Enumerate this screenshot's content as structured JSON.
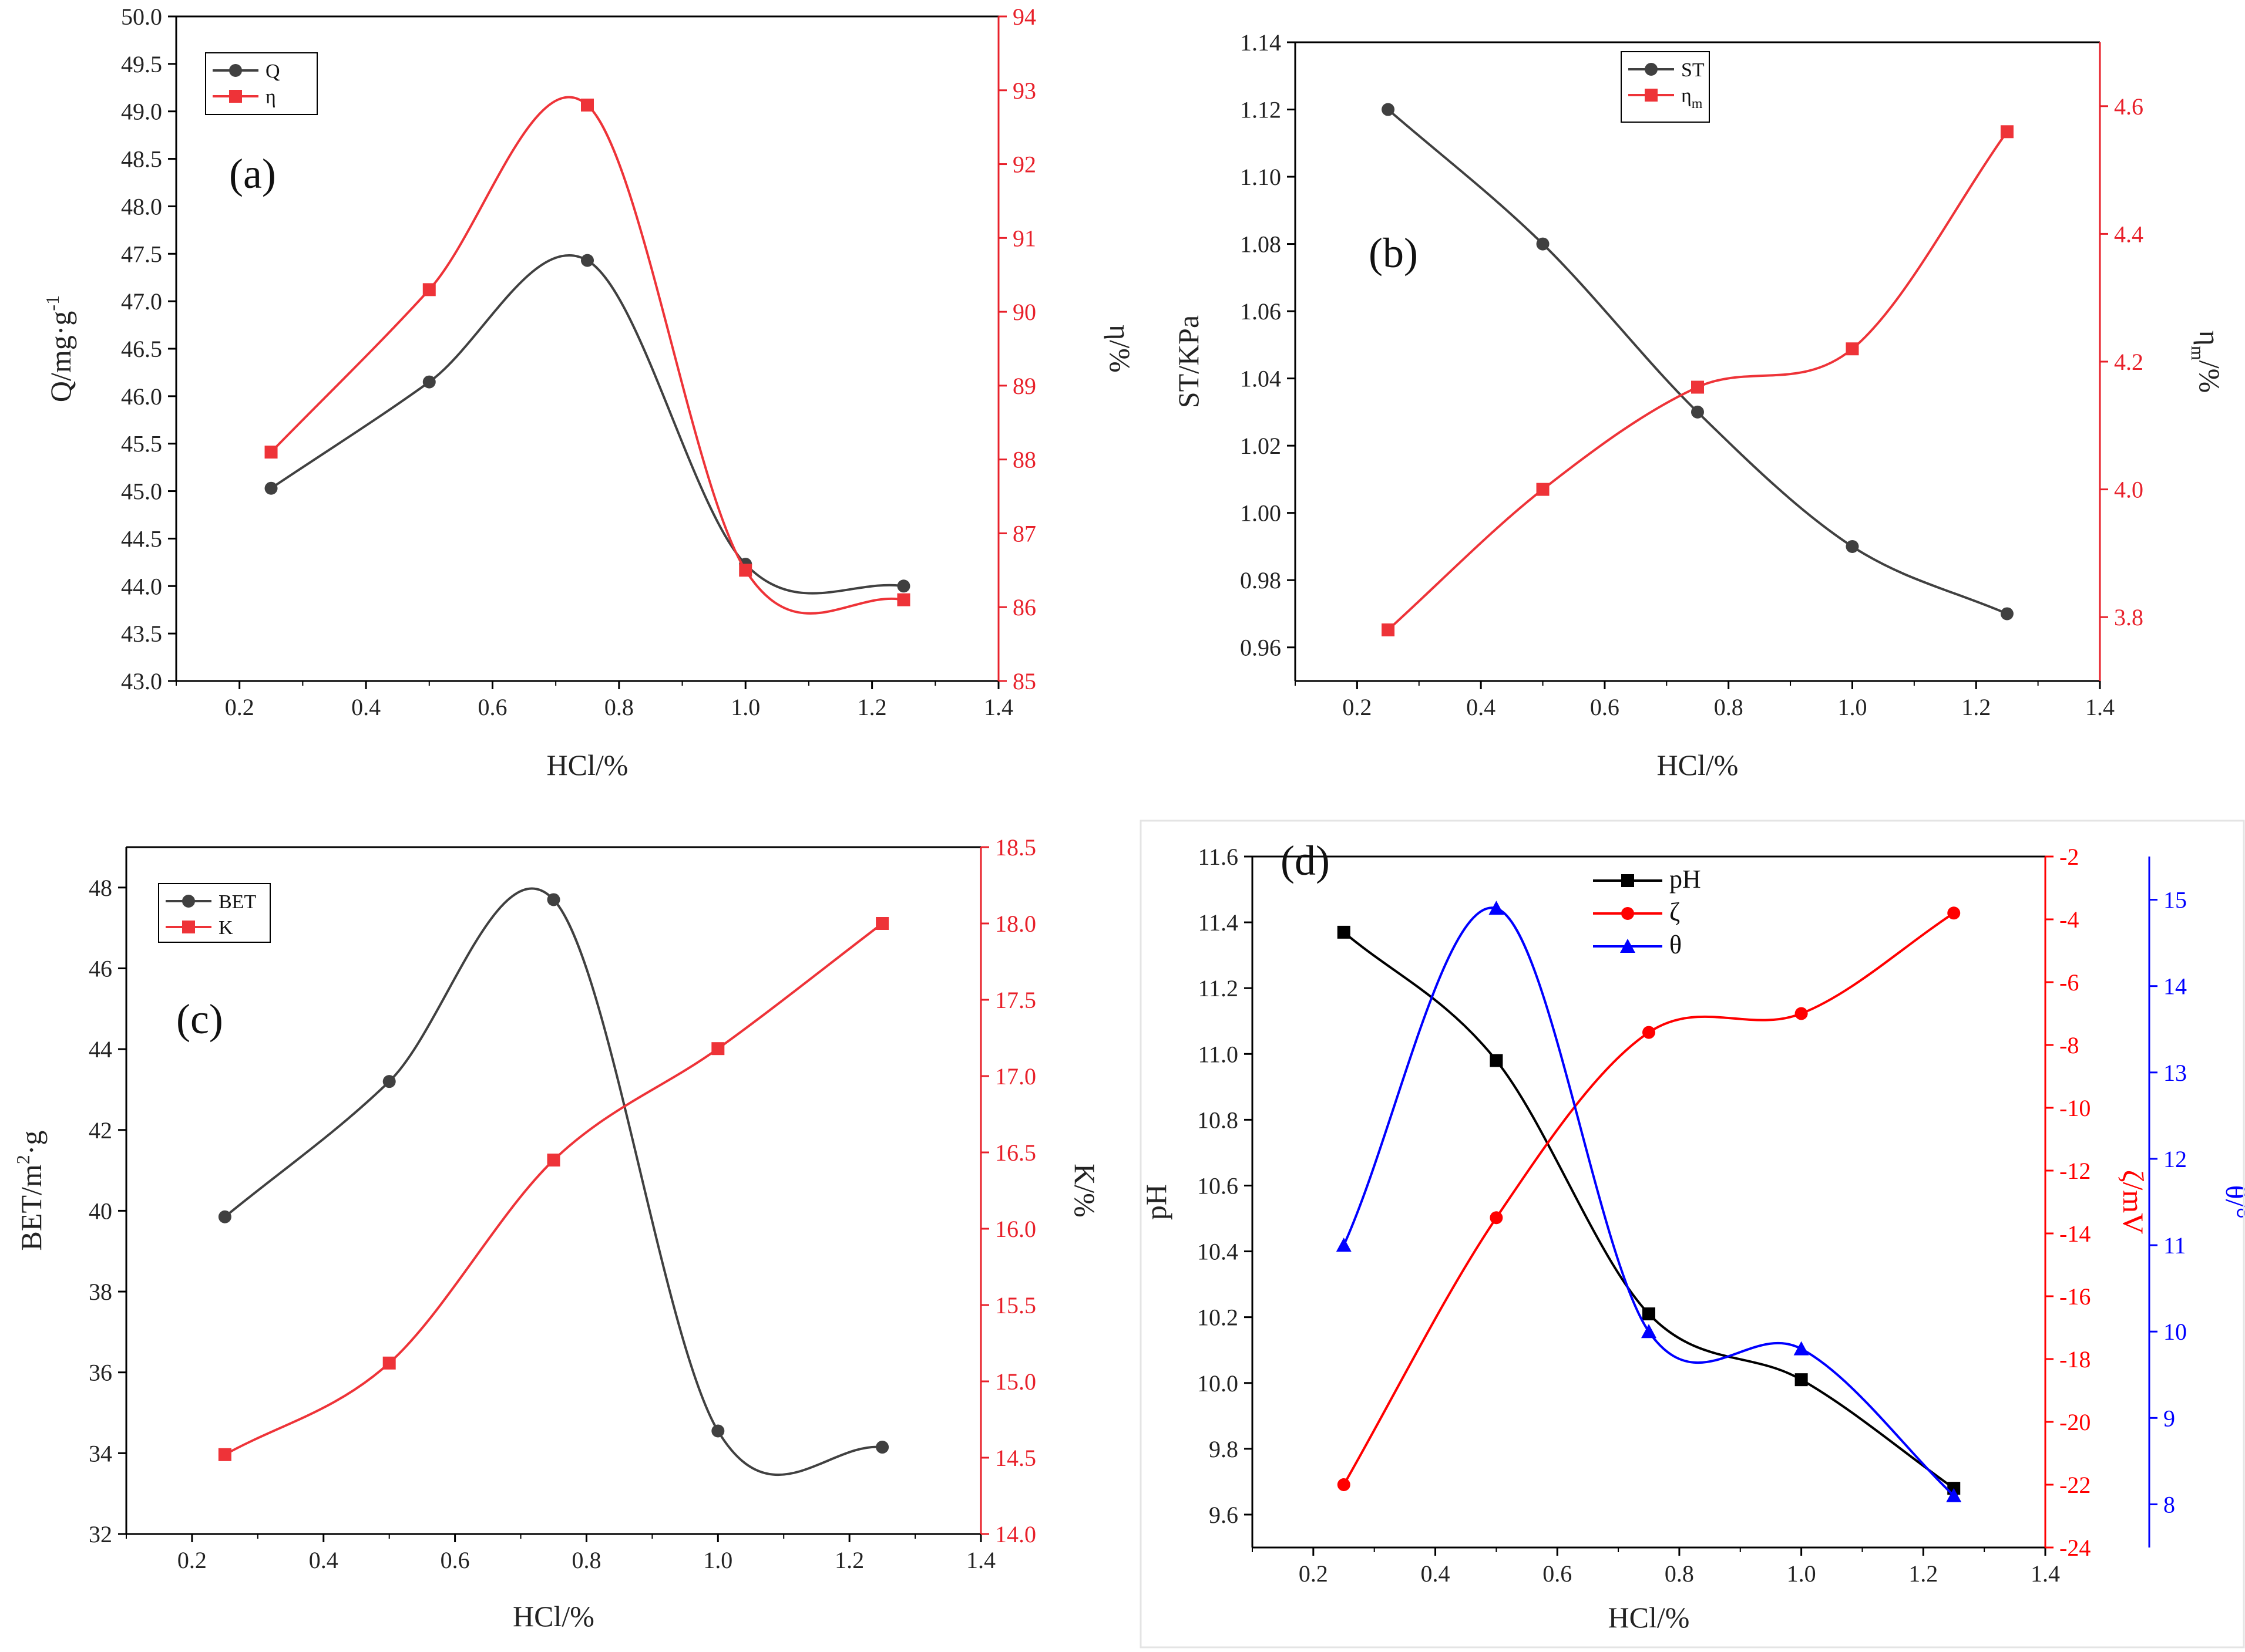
{
  "chart_data": [
    {
      "id": "a",
      "type": "line",
      "panel_label": "(a)",
      "xlabel": "HCl/%",
      "xlim": [
        0.1,
        1.4
      ],
      "xticks": [
        "0.2",
        "0.4",
        "0.6",
        "0.8",
        "1.0",
        "1.2",
        "1.4"
      ],
      "x": [
        0.25,
        0.5,
        0.75,
        1.0,
        1.25
      ],
      "left_axis": {
        "label": "Q/mg·g",
        "label_sup": "-1",
        "ylim": [
          43.0,
          50.0
        ],
        "ticks": [
          "43.0",
          "43.5",
          "44.0",
          "44.5",
          "45.0",
          "45.5",
          "46.0",
          "46.5",
          "47.0",
          "47.5",
          "48.0",
          "48.5",
          "49.0",
          "49.5",
          "50.0"
        ],
        "color": "#000000"
      },
      "right_axes": [
        {
          "label": "η/%",
          "ylim": [
            85,
            94
          ],
          "ticks": [
            "85",
            "86",
            "87",
            "88",
            "89",
            "90",
            "91",
            "92",
            "93",
            "94"
          ],
          "color": "#e8202a"
        }
      ],
      "series": [
        {
          "name": "Q",
          "axis": "left",
          "marker": "circle",
          "color": "#404040",
          "values": [
            45.03,
            46.15,
            47.43,
            44.23,
            44.0
          ]
        },
        {
          "name": "η",
          "axis": "right0",
          "marker": "square",
          "color": "#ee3338",
          "values": [
            88.1,
            90.3,
            92.8,
            86.5,
            86.1
          ]
        }
      ],
      "legend": [
        {
          "label": "Q",
          "series": 0
        },
        {
          "label": "η",
          "series": 1
        }
      ]
    },
    {
      "id": "b",
      "type": "line",
      "panel_label": "(b)",
      "xlabel": "HCl/%",
      "xlim": [
        0.1,
        1.4
      ],
      "xticks": [
        "0.2",
        "0.4",
        "0.6",
        "0.8",
        "1.0",
        "1.2",
        "1.4"
      ],
      "x": [
        0.25,
        0.5,
        0.75,
        1.0,
        1.25
      ],
      "left_axis": {
        "label": "ST/KPa",
        "ylim": [
          0.95,
          1.14
        ],
        "ticks": [
          "0.96",
          "0.98",
          "1.00",
          "1.02",
          "1.04",
          "1.06",
          "1.08",
          "1.10",
          "1.12",
          "1.14"
        ],
        "color": "#000000"
      },
      "right_axes": [
        {
          "label": "η",
          "label_sub": "m",
          "label_rest": "/%",
          "ylim": [
            3.7,
            4.7
          ],
          "ticks": [
            "3.8",
            "4.0",
            "4.2",
            "4.4",
            "4.6"
          ],
          "color": "#e8202a"
        }
      ],
      "series": [
        {
          "name": "ST",
          "axis": "left",
          "marker": "circle",
          "color": "#404040",
          "values": [
            1.12,
            1.08,
            1.03,
            0.99,
            0.97
          ]
        },
        {
          "name": "ηm",
          "axis": "right0",
          "marker": "square",
          "color": "#ee3338",
          "values": [
            3.78,
            4.0,
            4.16,
            4.22,
            4.56
          ]
        }
      ],
      "legend": [
        {
          "label": "ST",
          "series": 0
        },
        {
          "label": "η",
          "label_sub": "m",
          "series": 1
        }
      ]
    },
    {
      "id": "c",
      "type": "line",
      "panel_label": "(c)",
      "xlabel": "HCl/%",
      "xlim": [
        0.1,
        1.4
      ],
      "xticks": [
        "0.2",
        "0.4",
        "0.6",
        "0.8",
        "1.0",
        "1.2",
        "1.4"
      ],
      "x": [
        0.25,
        0.5,
        0.75,
        1.0,
        1.25
      ],
      "left_axis": {
        "label": "BET/m",
        "label_sup": "2",
        "label_rest": "·g",
        "ylim": [
          32,
          49
        ],
        "ticks": [
          "32",
          "34",
          "36",
          "38",
          "40",
          "42",
          "44",
          "46",
          "48"
        ],
        "color": "#000000"
      },
      "right_axes": [
        {
          "label": "K/%",
          "ylim": [
            14.0,
            18.5
          ],
          "ticks": [
            "14.0",
            "14.5",
            "15.0",
            "15.5",
            "16.0",
            "16.5",
            "17.0",
            "17.5",
            "18.0",
            "18.5"
          ],
          "color": "#e8202a"
        }
      ],
      "series": [
        {
          "name": "BET",
          "axis": "left",
          "marker": "circle",
          "color": "#404040",
          "values": [
            39.85,
            43.2,
            47.7,
            34.55,
            34.15
          ]
        },
        {
          "name": "K",
          "axis": "right0",
          "marker": "square",
          "color": "#ee3338",
          "values": [
            14.52,
            15.12,
            16.45,
            17.18,
            18.0
          ]
        }
      ],
      "legend": [
        {
          "label": "BET",
          "series": 0
        },
        {
          "label": "K",
          "series": 1
        }
      ]
    },
    {
      "id": "d",
      "type": "line",
      "panel_label": "(d)",
      "xlabel": "HCl/%",
      "xlim": [
        0.1,
        1.4
      ],
      "xticks": [
        "0.2",
        "0.4",
        "0.6",
        "0.8",
        "1.0",
        "1.2",
        "1.4"
      ],
      "x": [
        0.25,
        0.5,
        0.75,
        1.0,
        1.25
      ],
      "left_axis": {
        "label": "pH",
        "ylim": [
          9.5,
          11.6
        ],
        "ticks": [
          "9.6",
          "9.8",
          "10.0",
          "10.2",
          "10.4",
          "10.6",
          "10.8",
          "11.0",
          "11.2",
          "11.4",
          "11.6"
        ],
        "color": "#000000"
      },
      "right_axes": [
        {
          "label": "ζ/mV",
          "ylim": [
            -24,
            -2
          ],
          "ticks": [
            "-24",
            "-22",
            "-20",
            "-18",
            "-16",
            "-14",
            "-12",
            "-10",
            "-8",
            "-6",
            "-4",
            "-2"
          ],
          "color": "#ff0000"
        },
        {
          "label": "θ/°",
          "ylim": [
            7.5,
            15.5
          ],
          "ticks": [
            "8",
            "9",
            "10",
            "11",
            "12",
            "13",
            "14",
            "15"
          ],
          "color": "#0000ff"
        }
      ],
      "series": [
        {
          "name": "pH",
          "axis": "left",
          "marker": "square",
          "color": "#000000",
          "values": [
            11.37,
            10.98,
            10.21,
            10.01,
            9.68
          ]
        },
        {
          "name": "ζ",
          "axis": "right0",
          "marker": "circle",
          "color": "#ff0000",
          "values": [
            -22.0,
            -13.5,
            -7.6,
            -7.0,
            -3.8
          ]
        },
        {
          "name": "θ",
          "axis": "right1",
          "marker": "triangle",
          "color": "#0000ff",
          "values": [
            11.0,
            14.9,
            10.0,
            9.8,
            8.1
          ]
        }
      ],
      "legend": [
        {
          "label": "pH",
          "series": 0
        },
        {
          "label": "ζ",
          "series": 1
        },
        {
          "label": "θ",
          "series": 2
        }
      ]
    }
  ]
}
